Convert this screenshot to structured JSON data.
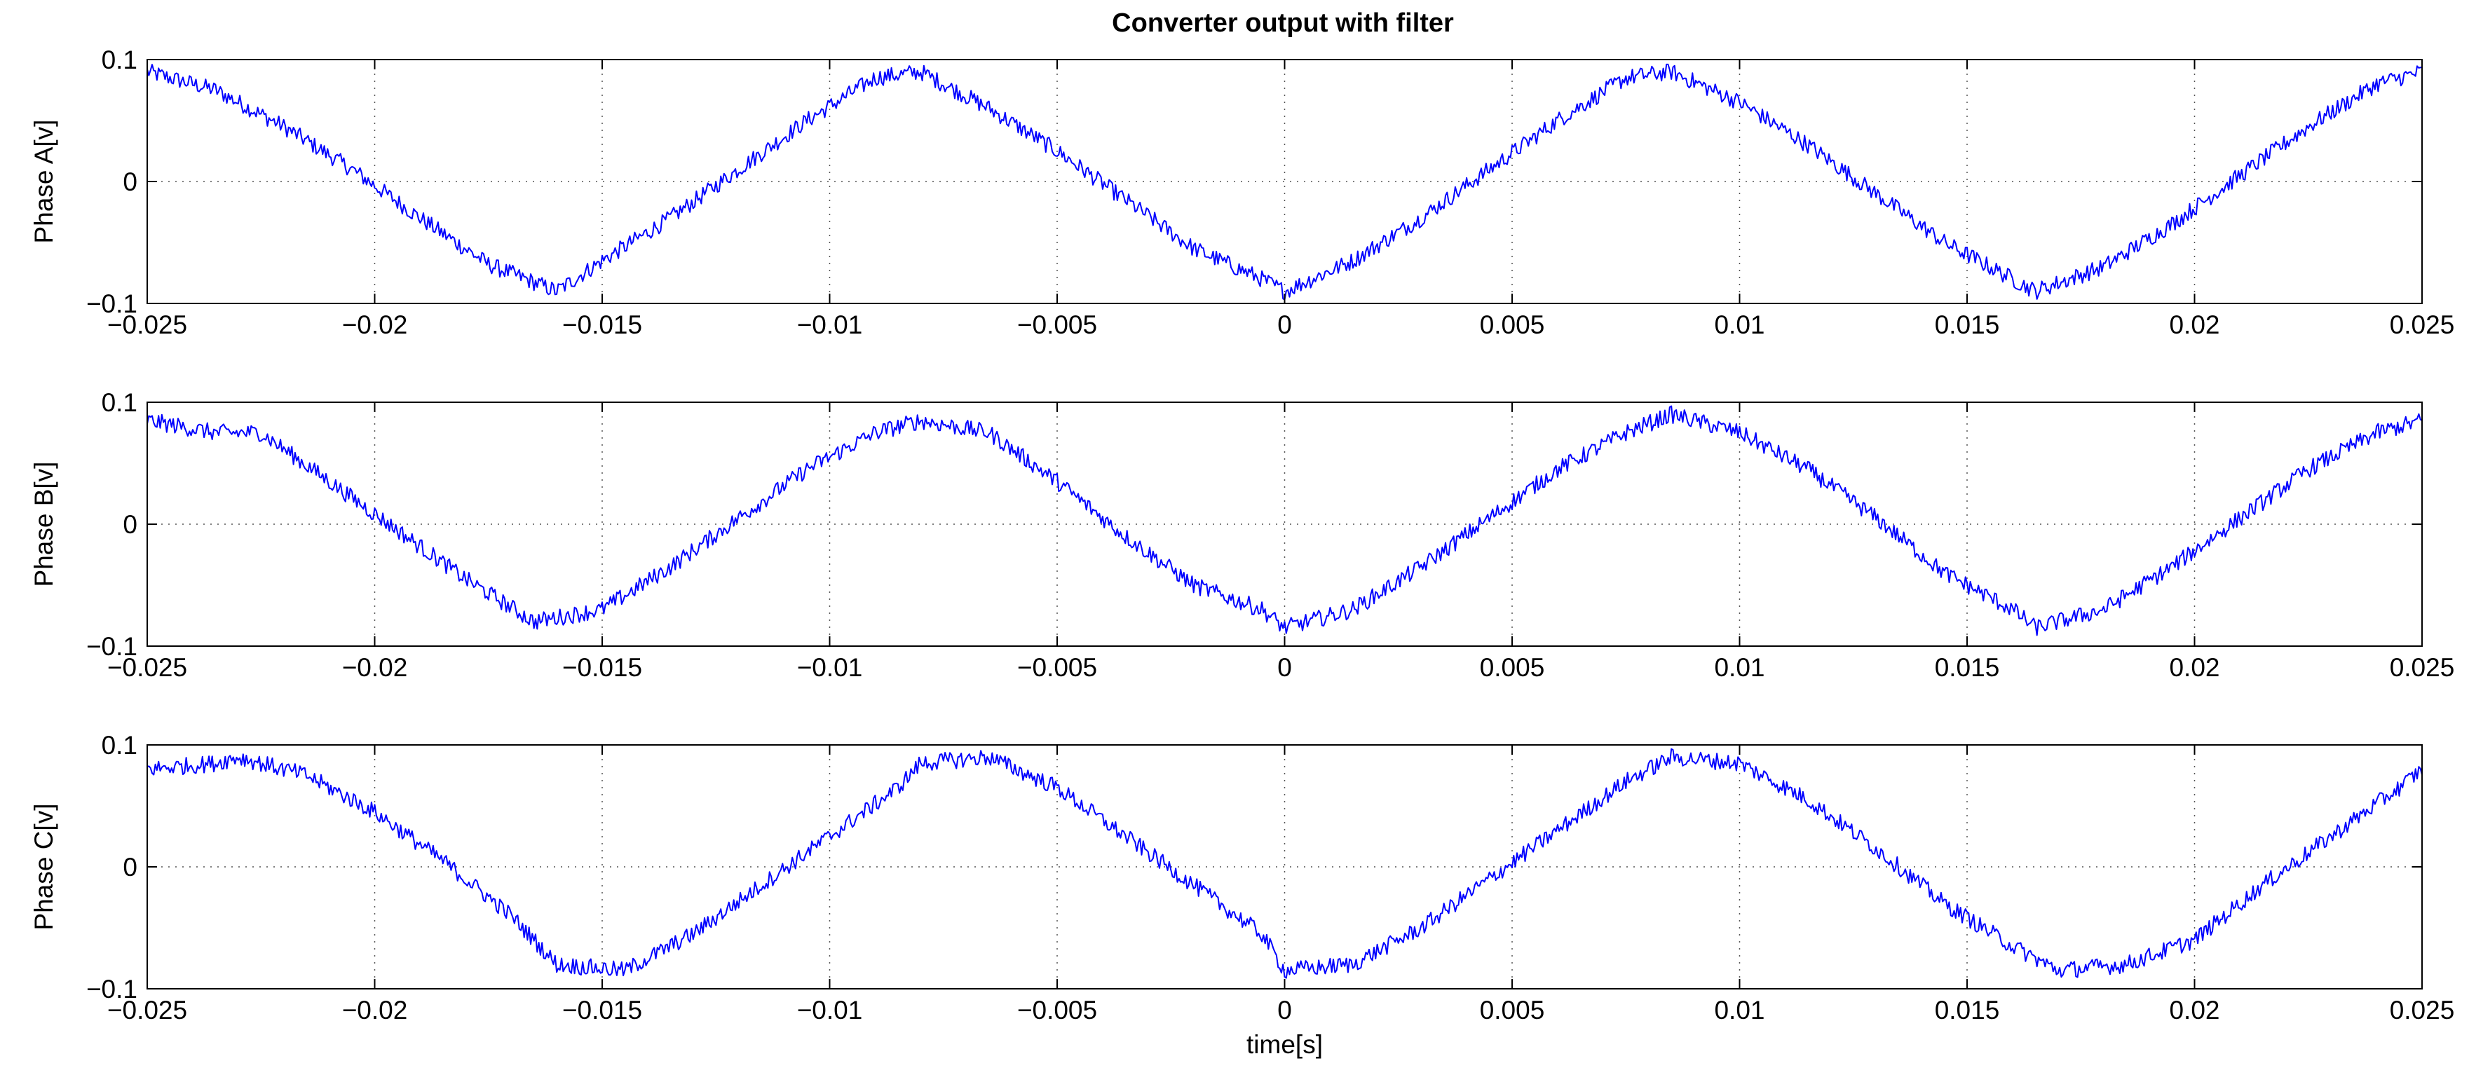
{
  "figure": {
    "title": "Converter output with filter",
    "line_color": "#0000ff"
  },
  "chart_data": [
    {
      "type": "line",
      "title": "Converter output with filter",
      "ylabel": "Phase A[v]",
      "xlabel": "",
      "xlim": [
        -0.025,
        0.025
      ],
      "ylim": [
        -0.1,
        0.1
      ],
      "grid": true,
      "xticks": [
        -0.025,
        -0.02,
        -0.015,
        -0.01,
        -0.005,
        0,
        0.005,
        0.01,
        0.015,
        0.02,
        0.025
      ],
      "xtick_labels": [
        "−0.025",
        "−0.02",
        "−0.015",
        "−0.01",
        "−0.005",
        "0",
        "0.005",
        "0.01",
        "0.015",
        "0.02",
        "0.025"
      ],
      "yticks": [
        -0.1,
        0,
        0.1
      ],
      "ytick_labels": [
        "−0.1",
        "0",
        "0.1"
      ],
      "series": [
        {
          "color": "#0000ff",
          "x": [
            -0.025,
            -0.0235,
            -0.022,
            -0.0205,
            -0.019,
            -0.0175,
            -0.016,
            -0.015,
            -0.0135,
            -0.012,
            -0.0105,
            -0.009,
            -0.008,
            -0.0065,
            -0.005,
            -0.0035,
            -0.002,
            -0.0005,
            0,
            0.0015,
            0.003,
            0.0045,
            0.006,
            0.0075,
            0.0085,
            0.01,
            0.0115,
            0.013,
            0.0145,
            0.016,
            0.0165,
            0.018,
            0.0195,
            0.021,
            0.0225,
            0.024,
            0.025
          ],
          "y": [
            0.09,
            0.075,
            0.045,
            0.01,
            -0.03,
            -0.068,
            -0.09,
            -0.065,
            -0.03,
            0.01,
            0.05,
            0.085,
            0.09,
            0.06,
            0.025,
            -0.015,
            -0.055,
            -0.08,
            -0.09,
            -0.065,
            -0.03,
            0.01,
            0.05,
            0.085,
            0.09,
            0.065,
            0.03,
            -0.01,
            -0.05,
            -0.08,
            -0.09,
            -0.07,
            -0.035,
            0.005,
            0.045,
            0.08,
            0.09
          ]
        }
      ]
    },
    {
      "type": "line",
      "title": "",
      "ylabel": "Phase B[v]",
      "xlabel": "",
      "xlim": [
        -0.025,
        0.025
      ],
      "ylim": [
        -0.1,
        0.1
      ],
      "grid": true,
      "xticks": [
        -0.025,
        -0.02,
        -0.015,
        -0.01,
        -0.005,
        0,
        0.005,
        0.01,
        0.015,
        0.02,
        0.025
      ],
      "xtick_labels": [
        "−0.025",
        "−0.02",
        "−0.015",
        "−0.01",
        "−0.005",
        "0",
        "0.005",
        "0.01",
        "0.015",
        "0.02",
        "0.025"
      ],
      "yticks": [
        -0.1,
        0,
        0.1
      ],
      "ytick_labels": [
        "−0.1",
        "0",
        "0.1"
      ],
      "series": [
        {
          "color": "#0000ff",
          "x": [
            -0.025,
            -0.0235,
            -0.0225,
            -0.021,
            -0.0195,
            -0.018,
            -0.0165,
            -0.015,
            -0.0135,
            -0.012,
            -0.0105,
            -0.009,
            -0.008,
            -0.0065,
            -0.005,
            -0.0035,
            -0.002,
            -0.0005,
            0,
            0.0015,
            0.003,
            0.0045,
            0.006,
            0.0075,
            0.0085,
            0.01,
            0.0115,
            0.013,
            0.0145,
            0.016,
            0.0165,
            0.018,
            0.0195,
            0.021,
            0.0225,
            0.024,
            0.025
          ],
          "y": [
            0.085,
            0.075,
            0.075,
            0.035,
            -0.005,
            -0.045,
            -0.08,
            -0.07,
            -0.035,
            0.005,
            0.045,
            0.075,
            0.085,
            0.075,
            0.035,
            -0.01,
            -0.05,
            -0.07,
            -0.085,
            -0.07,
            -0.035,
            0.005,
            0.045,
            0.075,
            0.09,
            0.075,
            0.045,
            0.005,
            -0.04,
            -0.07,
            -0.085,
            -0.07,
            -0.035,
            0.005,
            0.045,
            0.075,
            0.085
          ]
        }
      ]
    },
    {
      "type": "line",
      "title": "",
      "ylabel": "Phase C[v]",
      "xlabel": "time[s]",
      "xlim": [
        -0.025,
        0.025
      ],
      "ylim": [
        -0.1,
        0.1
      ],
      "grid": true,
      "xticks": [
        -0.025,
        -0.02,
        -0.015,
        -0.01,
        -0.005,
        0,
        0.005,
        0.01,
        0.015,
        0.02,
        0.025
      ],
      "xtick_labels": [
        "−0.025",
        "−0.02",
        "−0.015",
        "−0.01",
        "−0.005",
        "0",
        "0.005",
        "0.01",
        "0.015",
        "0.02",
        "0.025"
      ],
      "yticks": [
        -0.1,
        0,
        0.1
      ],
      "ytick_labels": [
        "−0.1",
        "0",
        "0.1"
      ],
      "series": [
        {
          "color": "#0000ff",
          "x": [
            -0.025,
            -0.0235,
            -0.023,
            -0.0215,
            -0.02,
            -0.0185,
            -0.017,
            -0.016,
            -0.0145,
            -0.013,
            -0.0115,
            -0.01,
            -0.0085,
            -0.008,
            -0.0065,
            -0.005,
            -0.0035,
            -0.002,
            -0.0005,
            0,
            0.0015,
            0.003,
            0.0045,
            0.006,
            0.0075,
            0.0085,
            0.01,
            0.0115,
            0.013,
            0.0145,
            0.016,
            0.017,
            0.0185,
            0.02,
            0.0215,
            0.023,
            0.0245,
            0.025
          ],
          "y": [
            0.08,
            0.085,
            0.09,
            0.075,
            0.045,
            0.005,
            -0.04,
            -0.08,
            -0.085,
            -0.055,
            -0.015,
            0.025,
            0.065,
            0.085,
            0.09,
            0.065,
            0.025,
            -0.015,
            -0.055,
            -0.085,
            -0.08,
            -0.05,
            -0.01,
            0.03,
            0.07,
            0.09,
            0.085,
            0.055,
            0.015,
            -0.03,
            -0.065,
            -0.085,
            -0.08,
            -0.06,
            -0.015,
            0.025,
            0.065,
            0.08
          ]
        }
      ]
    }
  ]
}
